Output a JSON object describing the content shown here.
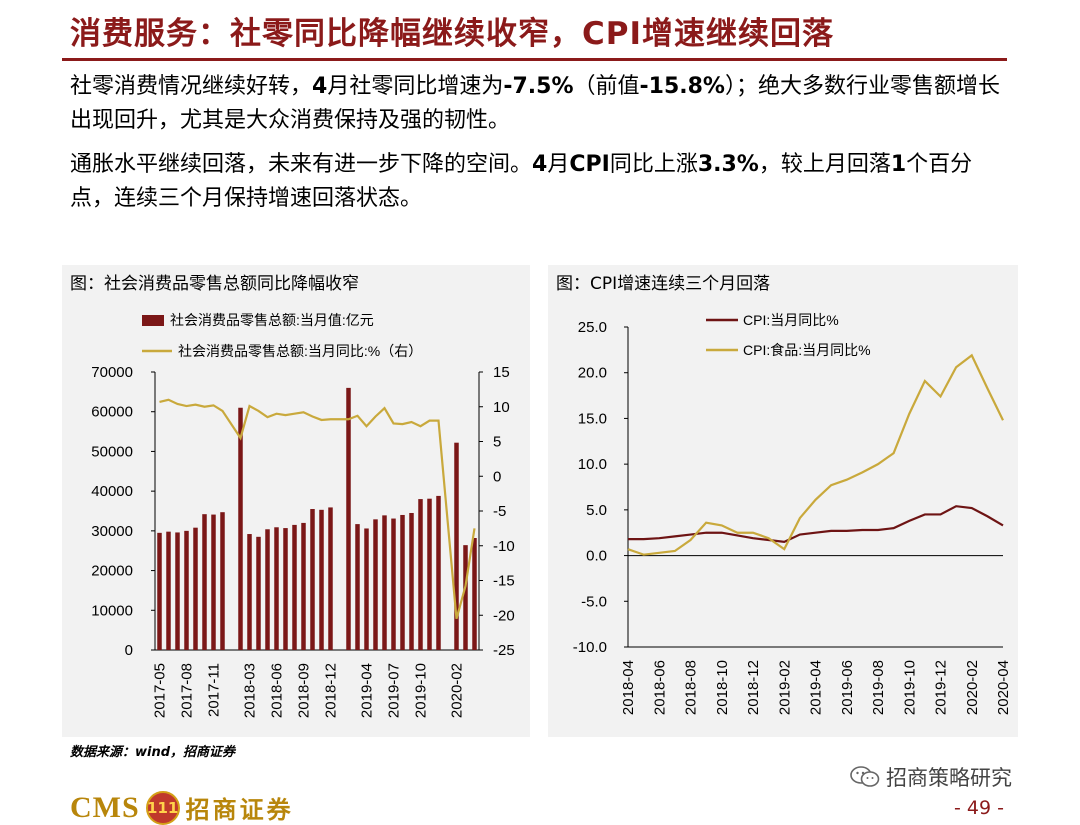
{
  "header": {
    "title": "消费服务：社零同比降幅继续收窄，CPI增速继续回落"
  },
  "paragraphs": [
    [
      "社零消费情况继续好转，",
      "4",
      "月社零同比增速为",
      "-7.5%",
      "（前值",
      "-15.8%",
      "）；绝大多数行业零售额增长出现回升，尤其是大众消费保持及强的韧性。"
    ],
    [
      "通胀水平继续回落，未来有进一步下降的空间。",
      "4",
      "月",
      "CPI",
      "同比上涨",
      "3.3%",
      "，较上月回落",
      "1",
      "个百分点，连续三个月保持增速回落状态。"
    ]
  ],
  "colors": {
    "accent": "#8b1a1a",
    "bar": "#7b1717",
    "line_gold": "#c9a93c",
    "line_dark": "#6e1414",
    "panel_bg": "#f2f2f2"
  },
  "chart_data": [
    {
      "type": "bar+line",
      "title": "图：社会消费品零售总额同比降幅收窄",
      "legend": [
        "社会消费品零售总额:当月值:亿元",
        "社会消费品零售总额:当月同比:%（右）"
      ],
      "x_tick_labels": [
        "2017-05",
        "2017-08",
        "2017-11",
        "2018-03",
        "2018-06",
        "2018-09",
        "2018-12",
        "2019-04",
        "2019-07",
        "2019-10",
        "2020-02"
      ],
      "categories": [
        "2017-05",
        "2017-06",
        "2017-07",
        "2017-08",
        "2017-09",
        "2017-10",
        "2017-11",
        "2017-12",
        "2018-01",
        "2018-02",
        "2018-03",
        "2018-04",
        "2018-05",
        "2018-06",
        "2018-07",
        "2018-08",
        "2018-09",
        "2018-10",
        "2018-11",
        "2018-12",
        "2019-01",
        "2019-02",
        "2019-03",
        "2019-04",
        "2019-05",
        "2019-06",
        "2019-07",
        "2019-08",
        "2019-09",
        "2019-10",
        "2019-11",
        "2019-12",
        "2020-01",
        "2020-02",
        "2020-03",
        "2020-04"
      ],
      "series": [
        {
          "name": "社会消费品零售总额:当月值:亿元",
          "axis": "left",
          "values": [
            29500,
            29800,
            29600,
            30000,
            30800,
            34200,
            34100,
            34700,
            null,
            61000,
            29200,
            28500,
            30400,
            30900,
            30700,
            31500,
            32000,
            35500,
            35300,
            35900,
            null,
            66000,
            31700,
            30600,
            32900,
            33900,
            33100,
            34000,
            34500,
            38000,
            38100,
            38800,
            null,
            52200,
            26400,
            28200
          ]
        },
        {
          "name": "社会消费品零售总额:当月同比:%（右）",
          "axis": "right",
          "values": [
            10.7,
            11.0,
            10.4,
            10.1,
            10.3,
            10.0,
            10.2,
            9.4,
            null,
            5.5,
            10.1,
            9.4,
            8.5,
            9.0,
            8.8,
            9.0,
            9.2,
            8.6,
            8.1,
            8.2,
            null,
            8.2,
            8.7,
            7.2,
            8.6,
            9.8,
            7.6,
            7.5,
            7.8,
            7.2,
            8.0,
            8.0,
            null,
            -20.5,
            -15.8,
            -7.5
          ]
        }
      ],
      "ylim_left": [
        0,
        70000
      ],
      "yticks_left": [
        "70000",
        "60000",
        "50000",
        "40000",
        "30000",
        "20000",
        "10000",
        "0"
      ],
      "ylim_right": [
        -25,
        15
      ],
      "yticks_right": [
        "15",
        "10",
        "5",
        "0",
        "-5",
        "-10",
        "-15",
        "-20",
        "-25"
      ]
    },
    {
      "type": "line",
      "title": "图：CPI增速连续三个月回落",
      "legend": [
        "CPI:当月同比%",
        "CPI:食品:当月同比%"
      ],
      "x_tick_labels": [
        "2018-04",
        "2018-06",
        "2018-08",
        "2018-10",
        "2018-12",
        "2019-02",
        "2019-04",
        "2019-06",
        "2019-08",
        "2019-10",
        "2019-12",
        "2020-02",
        "2020-04"
      ],
      "categories": [
        "2018-04",
        "2018-05",
        "2018-06",
        "2018-07",
        "2018-08",
        "2018-09",
        "2018-10",
        "2018-11",
        "2018-12",
        "2019-01",
        "2019-02",
        "2019-03",
        "2019-04",
        "2019-05",
        "2019-06",
        "2019-07",
        "2019-08",
        "2019-09",
        "2019-10",
        "2019-11",
        "2019-12",
        "2020-01",
        "2020-02",
        "2020-03",
        "2020-04"
      ],
      "series": [
        {
          "name": "CPI:当月同比%",
          "values": [
            1.8,
            1.8,
            1.9,
            2.1,
            2.3,
            2.5,
            2.5,
            2.2,
            1.9,
            1.7,
            1.5,
            2.3,
            2.5,
            2.7,
            2.7,
            2.8,
            2.8,
            3.0,
            3.8,
            4.5,
            4.5,
            5.4,
            5.2,
            4.3,
            3.3
          ]
        },
        {
          "name": "CPI:食品:当月同比%",
          "values": [
            0.7,
            0.1,
            0.3,
            0.5,
            1.7,
            3.6,
            3.3,
            2.5,
            2.5,
            1.9,
            0.7,
            4.1,
            6.1,
            7.7,
            8.3,
            9.1,
            10.0,
            11.2,
            15.5,
            19.1,
            17.4,
            20.6,
            21.9,
            18.3,
            14.8
          ]
        }
      ],
      "ylim": [
        -10,
        25
      ],
      "yticks": [
        "25.0",
        "20.0",
        "15.0",
        "10.0",
        "5.0",
        "0.0",
        "-5.0",
        "-10.0"
      ]
    }
  ],
  "footer": {
    "source": "数据来源：wind，招商证券",
    "logo_text": "CMS",
    "logo_mark": "111",
    "logo_cn": "招商证券",
    "wechat_name": "招商策略研究",
    "page_number": "- 49 -"
  }
}
